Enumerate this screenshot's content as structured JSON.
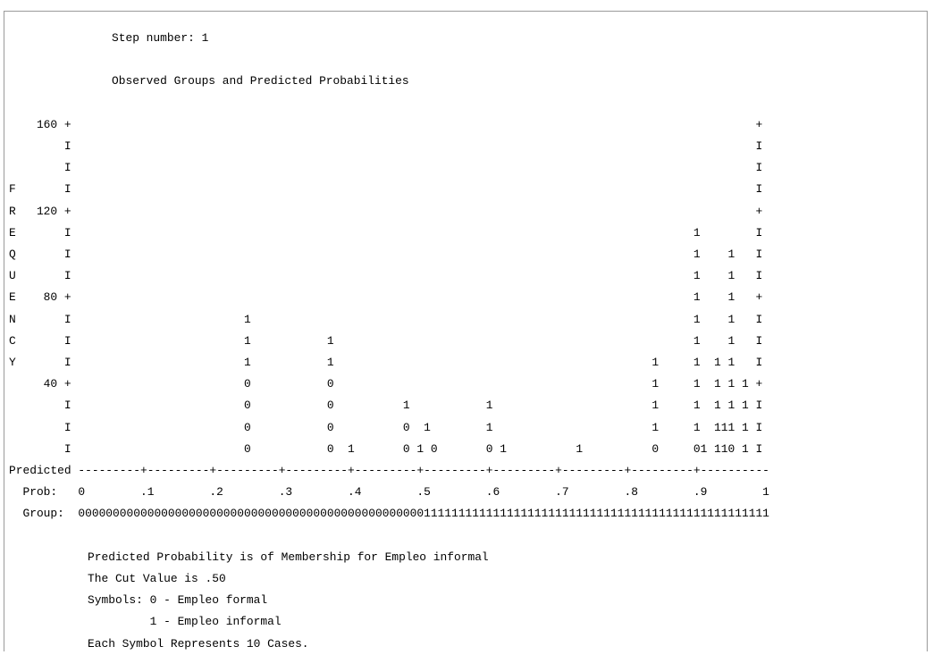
{
  "header": {
    "step_line": "Step number: 1",
    "title_line": "Observed Groups and Predicted Probabilities"
  },
  "histogram_lines": [
    "    160 +                                                                                                   +",
    "        I                                                                                                   I",
    "        I                                                                                                   I",
    "F       I                                                                                                   I",
    "R   120 +                                                                                                   +",
    "E       I                                                                                          1        I",
    "Q       I                                                                                          1    1   I",
    "U       I                                                                                          1    1   I",
    "E    80 +                                                                                          1    1   +",
    "N       I                         1                                                                1    1   I",
    "C       I                         1           1                                                    1    1   I",
    "Y       I                         1           1                                              1     1  1 1   I",
    "     40 +                         0           0                                              1     1  1 1 1 +",
    "        I                         0           0          1           1                       1     1  1 1 1 I",
    "        I                         0           0          0  1        1                       1     1  111 1 I",
    "        I                         0           0  1       0 1 0       0 1          1          0     01 110 1 I",
    "Predicted ---------+---------+---------+---------+---------+---------+---------+---------+---------+----------",
    "  Prob:   0        .1        .2        .3        .4        .5        .6        .7        .8        .9        1",
    "  Group:  0000000000000000000000000000000000000000000000000011111111111111111111111111111111111111111111111111"
  ],
  "legend": {
    "line1": "Predicted Probability is of Membership for Empleo informal",
    "line2": "The Cut Value is .50",
    "line3": "Symbols: 0 - Empleo formal",
    "line4": "         1 - Empleo informal",
    "line5": "Each Symbol Represents 10 Cases."
  }
}
